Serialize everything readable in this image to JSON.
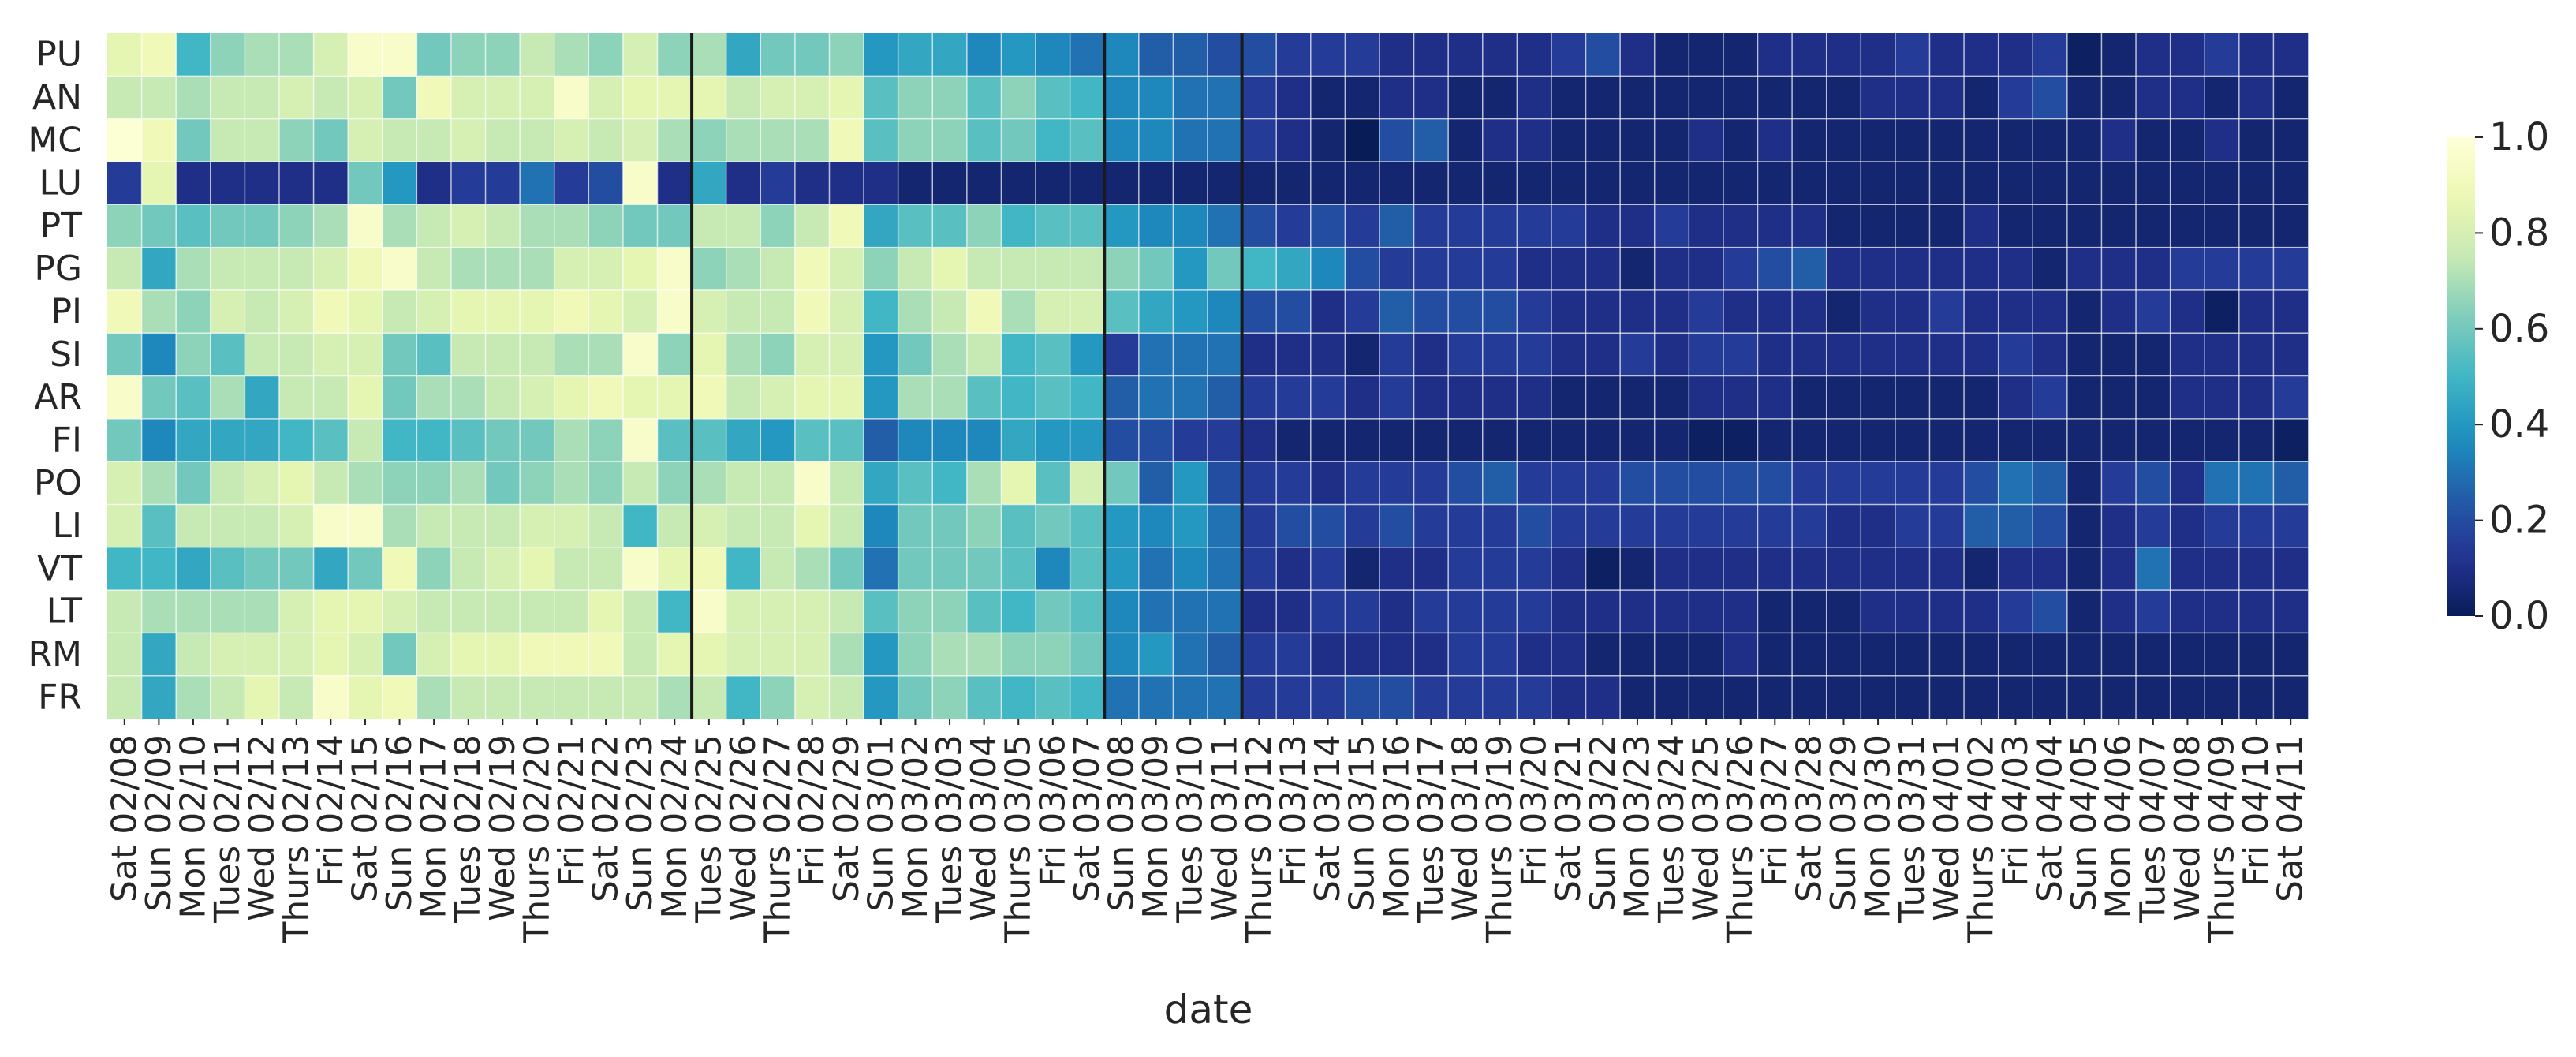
{
  "chart_data": {
    "type": "heatmap",
    "title": "",
    "xlabel": "date",
    "ylabel": "",
    "rows": [
      "PU",
      "AN",
      "MC",
      "LU",
      "PT",
      "PG",
      "PI",
      "SI",
      "AR",
      "FI",
      "PO",
      "LI",
      "VT",
      "LT",
      "RM",
      "FR"
    ],
    "columns": [
      "Sat 02/08",
      "Sun 02/09",
      "Mon 02/10",
      "Tues 02/11",
      "Wed 02/12",
      "Thurs 02/13",
      "Fri 02/14",
      "Sat 02/15",
      "Sun 02/16",
      "Mon 02/17",
      "Tues 02/18",
      "Wed 02/19",
      "Thurs 02/20",
      "Fri 02/21",
      "Sat 02/22",
      "Sun 02/23",
      "Mon 02/24",
      "Tues 02/25",
      "Wed 02/26",
      "Thurs 02/27",
      "Fri 02/28",
      "Sat 02/29",
      "Sun 03/01",
      "Mon 03/02",
      "Tues 03/03",
      "Wed 03/04",
      "Thurs 03/05",
      "Fri 03/06",
      "Sat 03/07",
      "Sun 03/08",
      "Mon 03/09",
      "Tues 03/10",
      "Wed 03/11",
      "Thurs 03/12",
      "Fri 03/13",
      "Sat 03/14",
      "Sun 03/15",
      "Mon 03/16",
      "Tues 03/17",
      "Wed 03/18",
      "Thurs 03/19",
      "Fri 03/20",
      "Sat 03/21",
      "Sun 03/22",
      "Mon 03/23",
      "Tues 03/24",
      "Wed 03/25",
      "Thurs 03/26",
      "Fri 03/27",
      "Sat 03/28",
      "Sun 03/29",
      "Mon 03/30",
      "Tues 03/31",
      "Wed 04/01",
      "Thurs 04/02",
      "Fri 04/03",
      "Sat 04/04",
      "Sun 04/05",
      "Mon 04/06",
      "Tues 04/07",
      "Wed 04/08",
      "Thurs 04/09",
      "Fri 04/10",
      "Sat 04/11"
    ],
    "values": [
      [
        0.85,
        0.9,
        0.5,
        0.65,
        0.7,
        0.7,
        0.8,
        0.95,
        0.95,
        0.6,
        0.65,
        0.65,
        0.75,
        0.7,
        0.65,
        0.8,
        0.65,
        0.7,
        0.45,
        0.6,
        0.6,
        0.65,
        0.4,
        0.45,
        0.45,
        0.35,
        0.4,
        0.35,
        0.3,
        0.35,
        0.25,
        0.25,
        0.2,
        0.2,
        0.15,
        0.15,
        0.15,
        0.1,
        0.1,
        0.1,
        0.1,
        0.1,
        0.15,
        0.2,
        0.1,
        0.05,
        0.05,
        0.05,
        0.1,
        0.1,
        0.1,
        0.1,
        0.15,
        0.1,
        0.1,
        0.1,
        0.15,
        0.02,
        0.05,
        0.1,
        0.1,
        0.15,
        0.1,
        0.1
      ],
      [
        0.75,
        0.75,
        0.7,
        0.75,
        0.75,
        0.8,
        0.75,
        0.8,
        0.6,
        0.9,
        0.8,
        0.8,
        0.8,
        0.95,
        0.8,
        0.85,
        0.85,
        0.85,
        0.75,
        0.8,
        0.8,
        0.85,
        0.55,
        0.65,
        0.65,
        0.55,
        0.65,
        0.55,
        0.5,
        0.35,
        0.35,
        0.3,
        0.3,
        0.15,
        0.1,
        0.05,
        0.05,
        0.1,
        0.1,
        0.05,
        0.05,
        0.1,
        0.05,
        0.05,
        0.05,
        0.05,
        0.05,
        0.05,
        0.05,
        0.05,
        0.05,
        0.1,
        0.1,
        0.1,
        0.05,
        0.15,
        0.2,
        0.05,
        0.05,
        0.1,
        0.1,
        0.05,
        0.1,
        0.05
      ],
      [
        0.98,
        0.9,
        0.6,
        0.75,
        0.75,
        0.65,
        0.6,
        0.8,
        0.75,
        0.75,
        0.8,
        0.75,
        0.75,
        0.8,
        0.75,
        0.8,
        0.7,
        0.65,
        0.7,
        0.7,
        0.7,
        0.9,
        0.55,
        0.65,
        0.65,
        0.55,
        0.6,
        0.5,
        0.55,
        0.35,
        0.35,
        0.3,
        0.3,
        0.15,
        0.1,
        0.05,
        0.0,
        0.2,
        0.25,
        0.05,
        0.1,
        0.1,
        0.05,
        0.05,
        0.05,
        0.05,
        0.1,
        0.05,
        0.1,
        0.05,
        0.05,
        0.05,
        0.05,
        0.05,
        0.05,
        0.05,
        0.05,
        0.05,
        0.1,
        0.05,
        0.05,
        0.1,
        0.05,
        0.05
      ],
      [
        0.15,
        0.85,
        0.1,
        0.1,
        0.1,
        0.1,
        0.1,
        0.6,
        0.4,
        0.1,
        0.15,
        0.15,
        0.3,
        0.15,
        0.2,
        0.95,
        0.1,
        0.45,
        0.1,
        0.15,
        0.1,
        0.1,
        0.1,
        0.05,
        0.05,
        0.05,
        0.05,
        0.05,
        0.05,
        0.05,
        0.05,
        0.05,
        0.05,
        0.05,
        0.05,
        0.05,
        0.05,
        0.05,
        0.05,
        0.05,
        0.05,
        0.05,
        0.05,
        0.05,
        0.05,
        0.05,
        0.05,
        0.05,
        0.05,
        0.05,
        0.05,
        0.05,
        0.05,
        0.05,
        0.05,
        0.05,
        0.05,
        0.05,
        0.05,
        0.05,
        0.05,
        0.05,
        0.05,
        0.05
      ],
      [
        0.65,
        0.6,
        0.55,
        0.6,
        0.6,
        0.65,
        0.7,
        0.95,
        0.7,
        0.75,
        0.8,
        0.75,
        0.7,
        0.7,
        0.65,
        0.6,
        0.6,
        0.75,
        0.75,
        0.65,
        0.75,
        0.9,
        0.45,
        0.55,
        0.55,
        0.65,
        0.5,
        0.55,
        0.55,
        0.4,
        0.35,
        0.35,
        0.3,
        0.2,
        0.15,
        0.2,
        0.15,
        0.25,
        0.15,
        0.15,
        0.15,
        0.15,
        0.15,
        0.1,
        0.1,
        0.15,
        0.1,
        0.1,
        0.1,
        0.1,
        0.05,
        0.05,
        0.05,
        0.05,
        0.1,
        0.05,
        0.05,
        0.05,
        0.05,
        0.05,
        0.05,
        0.05,
        0.05,
        0.05
      ],
      [
        0.75,
        0.45,
        0.7,
        0.75,
        0.75,
        0.75,
        0.8,
        0.9,
        0.95,
        0.75,
        0.7,
        0.7,
        0.7,
        0.8,
        0.8,
        0.85,
        0.95,
        0.65,
        0.7,
        0.75,
        0.9,
        0.8,
        0.65,
        0.75,
        0.85,
        0.75,
        0.75,
        0.75,
        0.75,
        0.65,
        0.6,
        0.4,
        0.6,
        0.5,
        0.45,
        0.35,
        0.2,
        0.15,
        0.15,
        0.15,
        0.15,
        0.1,
        0.1,
        0.1,
        0.05,
        0.1,
        0.1,
        0.15,
        0.2,
        0.25,
        0.1,
        0.1,
        0.1,
        0.1,
        0.1,
        0.1,
        0.05,
        0.1,
        0.1,
        0.1,
        0.15,
        0.15,
        0.15,
        0.15
      ],
      [
        0.9,
        0.7,
        0.65,
        0.8,
        0.75,
        0.8,
        0.9,
        0.85,
        0.75,
        0.8,
        0.85,
        0.85,
        0.85,
        0.9,
        0.85,
        0.8,
        0.95,
        0.8,
        0.75,
        0.75,
        0.9,
        0.8,
        0.5,
        0.7,
        0.75,
        0.9,
        0.7,
        0.8,
        0.8,
        0.55,
        0.45,
        0.4,
        0.35,
        0.2,
        0.2,
        0.1,
        0.15,
        0.25,
        0.2,
        0.2,
        0.2,
        0.15,
        0.1,
        0.1,
        0.1,
        0.1,
        0.15,
        0.1,
        0.1,
        0.1,
        0.05,
        0.1,
        0.1,
        0.15,
        0.1,
        0.1,
        0.1,
        0.05,
        0.1,
        0.15,
        0.1,
        0.02,
        0.1,
        0.1
      ],
      [
        0.6,
        0.35,
        0.65,
        0.55,
        0.75,
        0.75,
        0.8,
        0.8,
        0.6,
        0.55,
        0.75,
        0.75,
        0.75,
        0.7,
        0.7,
        0.95,
        0.65,
        0.85,
        0.7,
        0.65,
        0.8,
        0.8,
        0.4,
        0.6,
        0.7,
        0.75,
        0.5,
        0.55,
        0.4,
        0.15,
        0.3,
        0.3,
        0.3,
        0.1,
        0.1,
        0.1,
        0.05,
        0.15,
        0.1,
        0.15,
        0.15,
        0.15,
        0.1,
        0.1,
        0.15,
        0.1,
        0.15,
        0.15,
        0.1,
        0.1,
        0.1,
        0.1,
        0.1,
        0.1,
        0.1,
        0.15,
        0.1,
        0.05,
        0.05,
        0.05,
        0.1,
        0.1,
        0.1,
        0.1
      ],
      [
        0.95,
        0.6,
        0.55,
        0.7,
        0.45,
        0.75,
        0.75,
        0.85,
        0.6,
        0.7,
        0.7,
        0.75,
        0.8,
        0.85,
        0.9,
        0.85,
        0.85,
        0.9,
        0.75,
        0.8,
        0.85,
        0.85,
        0.4,
        0.7,
        0.7,
        0.55,
        0.5,
        0.55,
        0.5,
        0.25,
        0.3,
        0.3,
        0.25,
        0.15,
        0.15,
        0.15,
        0.1,
        0.15,
        0.1,
        0.1,
        0.1,
        0.1,
        0.05,
        0.05,
        0.05,
        0.05,
        0.1,
        0.1,
        0.1,
        0.05,
        0.05,
        0.05,
        0.05,
        0.05,
        0.05,
        0.1,
        0.15,
        0.05,
        0.05,
        0.05,
        0.1,
        0.1,
        0.1,
        0.15
      ],
      [
        0.6,
        0.35,
        0.45,
        0.45,
        0.45,
        0.5,
        0.55,
        0.75,
        0.5,
        0.5,
        0.55,
        0.6,
        0.6,
        0.7,
        0.65,
        0.95,
        0.55,
        0.55,
        0.45,
        0.4,
        0.55,
        0.55,
        0.25,
        0.35,
        0.35,
        0.35,
        0.45,
        0.4,
        0.4,
        0.2,
        0.2,
        0.15,
        0.15,
        0.1,
        0.05,
        0.05,
        0.05,
        0.05,
        0.05,
        0.05,
        0.05,
        0.05,
        0.05,
        0.05,
        0.05,
        0.05,
        0.02,
        0.02,
        0.05,
        0.05,
        0.05,
        0.05,
        0.05,
        0.05,
        0.05,
        0.05,
        0.05,
        0.05,
        0.05,
        0.05,
        0.05,
        0.05,
        0.05,
        0.02
      ],
      [
        0.8,
        0.7,
        0.6,
        0.75,
        0.8,
        0.85,
        0.75,
        0.7,
        0.65,
        0.65,
        0.7,
        0.6,
        0.65,
        0.7,
        0.65,
        0.75,
        0.65,
        0.7,
        0.75,
        0.75,
        0.95,
        0.75,
        0.45,
        0.55,
        0.5,
        0.7,
        0.85,
        0.55,
        0.8,
        0.6,
        0.25,
        0.4,
        0.2,
        0.15,
        0.15,
        0.1,
        0.15,
        0.15,
        0.15,
        0.2,
        0.25,
        0.15,
        0.15,
        0.15,
        0.2,
        0.2,
        0.2,
        0.2,
        0.2,
        0.15,
        0.15,
        0.15,
        0.15,
        0.15,
        0.2,
        0.3,
        0.25,
        0.05,
        0.15,
        0.2,
        0.1,
        0.3,
        0.3,
        0.25
      ],
      [
        0.8,
        0.55,
        0.75,
        0.75,
        0.75,
        0.8,
        0.95,
        0.95,
        0.7,
        0.75,
        0.75,
        0.75,
        0.8,
        0.8,
        0.75,
        0.5,
        0.75,
        0.8,
        0.75,
        0.75,
        0.85,
        0.75,
        0.35,
        0.6,
        0.6,
        0.65,
        0.55,
        0.6,
        0.55,
        0.4,
        0.35,
        0.4,
        0.3,
        0.15,
        0.2,
        0.2,
        0.15,
        0.2,
        0.15,
        0.15,
        0.15,
        0.2,
        0.15,
        0.15,
        0.15,
        0.15,
        0.15,
        0.15,
        0.15,
        0.15,
        0.1,
        0.1,
        0.15,
        0.15,
        0.25,
        0.25,
        0.2,
        0.05,
        0.1,
        0.15,
        0.1,
        0.15,
        0.15,
        0.15
      ],
      [
        0.5,
        0.5,
        0.45,
        0.55,
        0.6,
        0.6,
        0.45,
        0.6,
        0.9,
        0.65,
        0.75,
        0.8,
        0.85,
        0.75,
        0.75,
        0.95,
        0.85,
        0.9,
        0.5,
        0.75,
        0.7,
        0.6,
        0.3,
        0.6,
        0.6,
        0.6,
        0.55,
        0.35,
        0.55,
        0.4,
        0.3,
        0.35,
        0.3,
        0.15,
        0.1,
        0.15,
        0.05,
        0.1,
        0.1,
        0.15,
        0.15,
        0.15,
        0.1,
        0.02,
        0.05,
        0.1,
        0.1,
        0.1,
        0.1,
        0.1,
        0.1,
        0.1,
        0.1,
        0.1,
        0.05,
        0.1,
        0.1,
        0.05,
        0.1,
        0.3,
        0.1,
        0.1,
        0.1,
        0.1
      ],
      [
        0.75,
        0.7,
        0.7,
        0.7,
        0.7,
        0.8,
        0.85,
        0.85,
        0.8,
        0.75,
        0.75,
        0.75,
        0.75,
        0.75,
        0.85,
        0.75,
        0.5,
        0.95,
        0.8,
        0.8,
        0.8,
        0.75,
        0.55,
        0.65,
        0.65,
        0.55,
        0.5,
        0.6,
        0.55,
        0.35,
        0.3,
        0.3,
        0.3,
        0.1,
        0.1,
        0.15,
        0.15,
        0.1,
        0.15,
        0.15,
        0.15,
        0.15,
        0.1,
        0.1,
        0.1,
        0.1,
        0.1,
        0.1,
        0.05,
        0.05,
        0.05,
        0.1,
        0.1,
        0.1,
        0.1,
        0.15,
        0.2,
        0.05,
        0.1,
        0.15,
        0.1,
        0.1,
        0.1,
        0.1
      ],
      [
        0.75,
        0.45,
        0.75,
        0.8,
        0.8,
        0.8,
        0.85,
        0.8,
        0.6,
        0.8,
        0.85,
        0.85,
        0.9,
        0.9,
        0.9,
        0.75,
        0.85,
        0.85,
        0.8,
        0.8,
        0.8,
        0.7,
        0.4,
        0.65,
        0.7,
        0.7,
        0.65,
        0.65,
        0.6,
        0.35,
        0.4,
        0.3,
        0.25,
        0.15,
        0.15,
        0.1,
        0.1,
        0.1,
        0.1,
        0.15,
        0.15,
        0.1,
        0.1,
        0.05,
        0.05,
        0.05,
        0.05,
        0.1,
        0.05,
        0.05,
        0.05,
        0.05,
        0.05,
        0.05,
        0.05,
        0.05,
        0.05,
        0.05,
        0.05,
        0.05,
        0.05,
        0.05,
        0.05,
        0.05
      ],
      [
        0.75,
        0.45,
        0.7,
        0.75,
        0.85,
        0.75,
        0.95,
        0.85,
        0.9,
        0.7,
        0.75,
        0.75,
        0.75,
        0.75,
        0.75,
        0.75,
        0.7,
        0.75,
        0.5,
        0.65,
        0.8,
        0.75,
        0.4,
        0.6,
        0.65,
        0.55,
        0.5,
        0.55,
        0.5,
        0.3,
        0.3,
        0.3,
        0.3,
        0.15,
        0.15,
        0.15,
        0.2,
        0.2,
        0.15,
        0.15,
        0.15,
        0.15,
        0.1,
        0.1,
        0.05,
        0.05,
        0.05,
        0.05,
        0.05,
        0.05,
        0.05,
        0.05,
        0.05,
        0.05,
        0.05,
        0.05,
        0.05,
        0.05,
        0.05,
        0.05,
        0.05,
        0.05,
        0.05,
        0.05
      ]
    ],
    "vmin": 0.0,
    "vmax": 1.0,
    "colorbar_ticks": [
      "0.0",
      "0.2",
      "0.4",
      "0.6",
      "0.8",
      "1.0"
    ],
    "vertical_lines_after": [
      "Mon 02/24",
      "Sat 03/07",
      "Wed 03/11"
    ],
    "colormap": [
      "#ffffd9",
      "#edf8b1",
      "#c7e9b4",
      "#7fcdbb",
      "#41b6c4",
      "#1d91c0",
      "#225ea8",
      "#253494",
      "#081d58"
    ],
    "grid": true
  }
}
